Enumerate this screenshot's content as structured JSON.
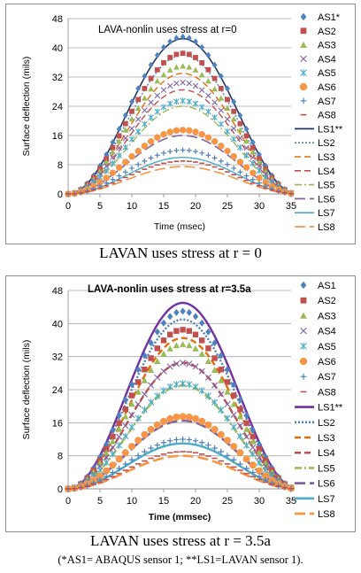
{
  "captions": {
    "a": "LAVAN uses stress at r = 0",
    "b": "LAVAN uses stress at r = 3.5a",
    "footnote": "(*AS1= ABAQUS sensor 1; **LS1=LAVAN sensor 1)."
  },
  "chart_data": [
    {
      "type": "line",
      "title": "LAVA-nonlin uses stress at r=0",
      "xlabel": "Time (msec)",
      "ylabel": "Surface deflection (mils)",
      "xlim": [
        0,
        35
      ],
      "ylim": [
        0,
        48
      ],
      "xticks": [
        "0",
        "5",
        "10",
        "15",
        "20",
        "25",
        "30",
        "35"
      ],
      "yticks": [
        "0",
        "8",
        "16",
        "24",
        "32",
        "40",
        "48"
      ],
      "grid": "horizontal",
      "legend": "right",
      "pulse": {
        "start": 0,
        "peak_time": 18,
        "end": 36
      },
      "markers": [
        {
          "name": "AS1*",
          "peak": 43,
          "symbol": "diamond",
          "color": "#4f81bd"
        },
        {
          "name": "AS2",
          "peak": 38.5,
          "symbol": "square",
          "color": "#c0504d"
        },
        {
          "name": "AS3",
          "peak": 35,
          "symbol": "triangle",
          "color": "#9bbb59"
        },
        {
          "name": "AS4",
          "peak": 30.5,
          "symbol": "x",
          "color": "#8064a2"
        },
        {
          "name": "AS5",
          "peak": 25.5,
          "symbol": "star",
          "color": "#4bacc6"
        },
        {
          "name": "AS6",
          "peak": 17.5,
          "symbol": "circle",
          "color": "#f79646"
        },
        {
          "name": "AS7",
          "peak": 12,
          "symbol": "plus",
          "color": "#4f81bd"
        },
        {
          "name": "AS8",
          "peak": 9,
          "symbol": "dash",
          "color": "#c0504d"
        }
      ],
      "lines": [
        {
          "name": "LS1**",
          "peak": 42.5,
          "color": "#1f3864",
          "style": "solid",
          "width": 1.6
        },
        {
          "name": "LS2",
          "peak": 38,
          "color": "#4f81bd",
          "style": "dotted",
          "width": 1.4
        },
        {
          "name": "LS3",
          "peak": 33,
          "color": "#e46c0a",
          "style": "dashed",
          "width": 1.4
        },
        {
          "name": "LS4",
          "peak": 28.5,
          "color": "#c0504d",
          "style": "dashed",
          "width": 1.4
        },
        {
          "name": "LS5",
          "peak": 24,
          "color": "#9bbb59",
          "style": "dashdot",
          "width": 1.4
        },
        {
          "name": "LS6",
          "peak": 16,
          "color": "#8064a2",
          "style": "longdash",
          "width": 1.6
        },
        {
          "name": "LS7",
          "peak": 10,
          "color": "#4bacc6",
          "style": "solid",
          "width": 1.4
        },
        {
          "name": "LS8",
          "peak": 7.5,
          "color": "#f79646",
          "style": "longdash",
          "width": 1.6
        }
      ]
    },
    {
      "type": "line",
      "title": "LAVA-nonlin uses stress at r=3.5a",
      "xlabel": "Time (mmsec)",
      "ylabel": "Surface deflection (mils)",
      "xlim": [
        0,
        35
      ],
      "ylim": [
        0,
        48
      ],
      "xticks": [
        "0",
        "5",
        "10",
        "15",
        "20",
        "25",
        "30",
        "35"
      ],
      "yticks": [
        "0",
        "8",
        "16",
        "24",
        "32",
        "40",
        "48"
      ],
      "grid": "horizontal",
      "legend": "right",
      "pulse": {
        "start": 0,
        "peak_time": 18,
        "end": 36
      },
      "markers": [
        {
          "name": "AS1",
          "peak": 43,
          "symbol": "diamond",
          "color": "#4f81bd"
        },
        {
          "name": "AS2",
          "peak": 38.5,
          "symbol": "square",
          "color": "#c0504d"
        },
        {
          "name": "AS3",
          "peak": 35,
          "symbol": "triangle",
          "color": "#9bbb59"
        },
        {
          "name": "AS4",
          "peak": 30.5,
          "symbol": "x",
          "color": "#8064a2"
        },
        {
          "name": "AS5",
          "peak": 25.5,
          "symbol": "star",
          "color": "#4bacc6"
        },
        {
          "name": "AS6",
          "peak": 17.5,
          "symbol": "circle",
          "color": "#f79646"
        },
        {
          "name": "AS7",
          "peak": 12,
          "symbol": "plus",
          "color": "#4f81bd"
        },
        {
          "name": "AS8",
          "peak": 9,
          "symbol": "dash",
          "color": "#c0504d"
        }
      ],
      "lines": [
        {
          "name": "LS1**",
          "peak": 45,
          "color": "#7030a0",
          "style": "solid",
          "width": 2.4
        },
        {
          "name": "LS2",
          "peak": 41,
          "color": "#4f81bd",
          "style": "dotted",
          "width": 2.4
        },
        {
          "name": "LS3",
          "peak": 36.5,
          "color": "#e46c0a",
          "style": "dashed",
          "width": 2.4
        },
        {
          "name": "LS4",
          "peak": 30.5,
          "color": "#c0504d",
          "style": "dashed",
          "width": 2.4
        },
        {
          "name": "LS5",
          "peak": 25,
          "color": "#9bbb59",
          "style": "dashdot",
          "width": 2.4
        },
        {
          "name": "LS6",
          "peak": 16.5,
          "color": "#8064a2",
          "style": "longdash",
          "width": 2.6
        },
        {
          "name": "LS7",
          "peak": 11,
          "color": "#4bacc6",
          "style": "solid",
          "width": 2.4
        },
        {
          "name": "LS8",
          "peak": 8,
          "color": "#f79646",
          "style": "longdash",
          "width": 2.6
        }
      ]
    }
  ]
}
